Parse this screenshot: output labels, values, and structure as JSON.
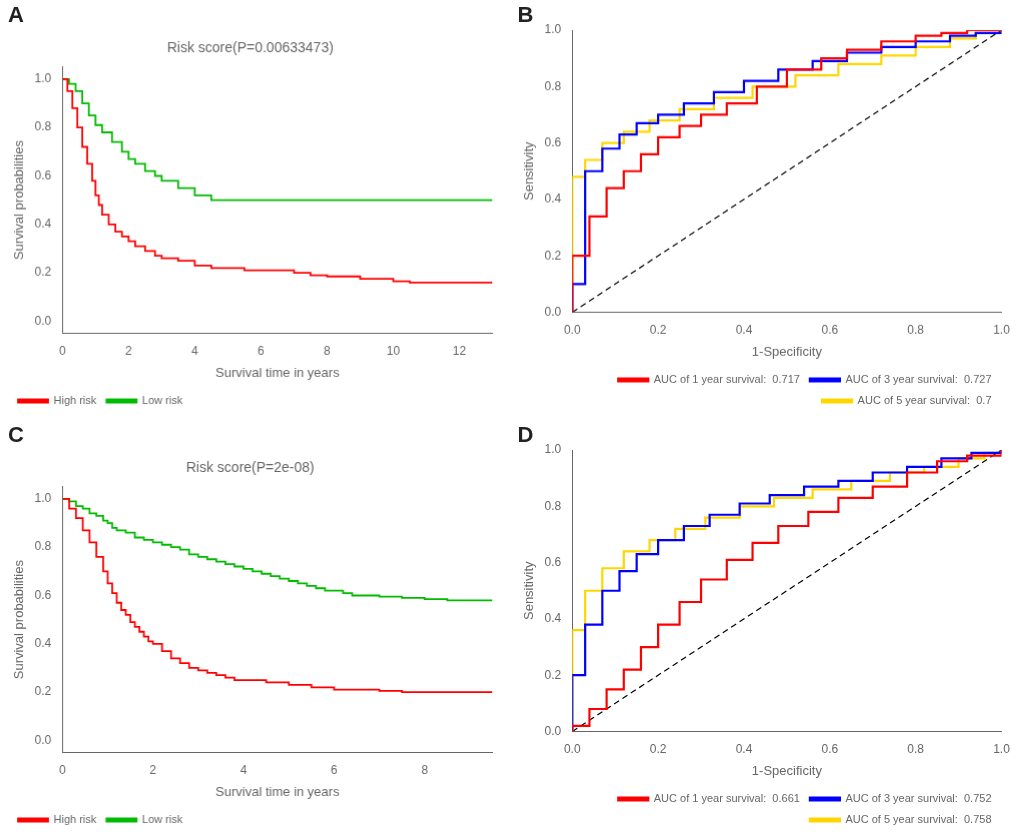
{
  "chart_data": [
    {
      "type": "step",
      "title": "Risk score(P=0.00633473)",
      "annotations": [
        "A"
      ],
      "xlabel": "Survival time in years",
      "ylabel": "Survival probabilities",
      "xlim": [
        0,
        13
      ],
      "ylim": [
        -0.05,
        1.05
      ],
      "xticks": [
        0,
        2,
        4,
        6,
        8,
        10,
        12
      ],
      "yticks": [
        {
          "value": 0.0,
          "label": "0.0"
        },
        0.2,
        0.4,
        0.6,
        0.8,
        {
          "value": 1.0,
          "label": "1.0"
        }
      ],
      "grid": false,
      "legend": "lower left",
      "series": [
        {
          "name": "High risk",
          "color": "#FF0000",
          "x": [
            0,
            0.15,
            0.3,
            0.45,
            0.6,
            0.75,
            0.9,
            1.0,
            1.1,
            1.2,
            1.4,
            1.6,
            1.8,
            2.0,
            2.2,
            2.5,
            2.8,
            3.0,
            3.5,
            4.0,
            4.5,
            5.0,
            5.5,
            6.0,
            7.0,
            7.5,
            8.0,
            9.0,
            10.0,
            10.5,
            12.5,
            13.0
          ],
          "values": [
            1.0,
            0.95,
            0.88,
            0.8,
            0.72,
            0.65,
            0.58,
            0.52,
            0.48,
            0.44,
            0.4,
            0.37,
            0.35,
            0.33,
            0.31,
            0.29,
            0.27,
            0.26,
            0.25,
            0.23,
            0.22,
            0.22,
            0.21,
            0.21,
            0.2,
            0.19,
            0.185,
            0.175,
            0.165,
            0.16,
            0.16,
            0.16
          ]
        },
        {
          "name": "Low risk",
          "color": "#00BB00",
          "x": [
            0,
            0.2,
            0.4,
            0.6,
            0.8,
            1.0,
            1.2,
            1.5,
            1.8,
            2.0,
            2.2,
            2.5,
            2.8,
            3.0,
            3.5,
            4.0,
            4.5,
            5.0,
            6.0,
            7.0,
            8.0,
            9.0,
            10.0,
            11.0,
            12.0,
            13.0
          ],
          "values": [
            1.0,
            0.98,
            0.95,
            0.9,
            0.85,
            0.81,
            0.78,
            0.74,
            0.7,
            0.67,
            0.65,
            0.62,
            0.6,
            0.58,
            0.55,
            0.52,
            0.5,
            0.5,
            0.5,
            0.5,
            0.5,
            0.5,
            0.5,
            0.5,
            0.5,
            0.5
          ]
        }
      ]
    },
    {
      "type": "line",
      "annotations": [
        "B"
      ],
      "xlabel": "1-Specificity",
      "ylabel": "Sensitivity",
      "xlim": [
        0.0,
        1.0
      ],
      "ylim": [
        0.0,
        1.0
      ],
      "xticks": [
        {
          "value": 0.0,
          "label": "0.0"
        },
        0.2,
        0.4,
        0.6,
        0.8,
        {
          "value": 1.0,
          "label": "1.0"
        }
      ],
      "yticks": [
        {
          "value": 0.0,
          "label": "0.0"
        },
        0.2,
        0.4,
        0.6,
        0.8,
        {
          "value": 1.0,
          "label": "1.0"
        }
      ],
      "grid": false,
      "legend": "lower right",
      "series": [
        {
          "name": "AUC of 1 year survival:  0.717",
          "color": "#FF0000",
          "x": [
            0.0,
            0.0,
            0.04,
            0.04,
            0.08,
            0.08,
            0.12,
            0.12,
            0.16,
            0.16,
            0.2,
            0.2,
            0.25,
            0.25,
            0.3,
            0.3,
            0.36,
            0.36,
            0.43,
            0.43,
            0.5,
            0.5,
            0.58,
            0.58,
            0.64,
            0.64,
            0.72,
            0.72,
            0.8,
            0.8,
            0.86,
            0.86,
            0.92,
            0.92,
            1.0,
            1.0
          ],
          "values": [
            0.0,
            0.2,
            0.2,
            0.34,
            0.34,
            0.44,
            0.44,
            0.5,
            0.5,
            0.56,
            0.56,
            0.62,
            0.62,
            0.66,
            0.66,
            0.7,
            0.7,
            0.74,
            0.74,
            0.8,
            0.8,
            0.86,
            0.86,
            0.9,
            0.9,
            0.93,
            0.93,
            0.96,
            0.96,
            0.98,
            0.98,
            0.99,
            0.99,
            1.0,
            1.0,
            1.0
          ]
        },
        {
          "name": "AUC of 3 year survival:  0.727",
          "color": "#0000FF",
          "x": [
            0.0,
            0.0,
            0.03,
            0.03,
            0.07,
            0.07,
            0.11,
            0.11,
            0.15,
            0.15,
            0.2,
            0.2,
            0.26,
            0.26,
            0.33,
            0.33,
            0.4,
            0.4,
            0.48,
            0.48,
            0.56,
            0.56,
            0.64,
            0.64,
            0.72,
            0.72,
            0.8,
            0.8,
            0.88,
            0.88,
            0.94,
            0.94,
            1.0,
            1.0
          ],
          "values": [
            0.0,
            0.1,
            0.1,
            0.5,
            0.5,
            0.58,
            0.58,
            0.63,
            0.63,
            0.67,
            0.67,
            0.7,
            0.7,
            0.74,
            0.74,
            0.78,
            0.78,
            0.82,
            0.82,
            0.86,
            0.86,
            0.89,
            0.89,
            0.92,
            0.92,
            0.94,
            0.94,
            0.96,
            0.96,
            0.98,
            0.98,
            0.99,
            0.99,
            1.0
          ]
        },
        {
          "name": "AUC of 5 year survival:  0.7",
          "color": "#FFD700",
          "x": [
            0.0,
            0.0,
            0.03,
            0.03,
            0.07,
            0.07,
            0.12,
            0.12,
            0.18,
            0.18,
            0.25,
            0.25,
            0.33,
            0.33,
            0.42,
            0.42,
            0.52,
            0.52,
            0.62,
            0.62,
            0.72,
            0.72,
            0.8,
            0.8,
            0.88,
            0.88,
            0.94,
            0.94,
            1.0,
            1.0
          ],
          "values": [
            0.0,
            0.48,
            0.48,
            0.54,
            0.54,
            0.6,
            0.6,
            0.64,
            0.64,
            0.68,
            0.68,
            0.72,
            0.72,
            0.76,
            0.76,
            0.8,
            0.8,
            0.84,
            0.84,
            0.88,
            0.88,
            0.91,
            0.91,
            0.94,
            0.94,
            0.97,
            0.97,
            0.99,
            0.99,
            1.0
          ]
        },
        {
          "color": "#000000",
          "line_style": "dashed",
          "x": [
            0,
            1
          ],
          "values": [
            0,
            1
          ]
        }
      ]
    },
    {
      "type": "step",
      "title": "Risk score(P=2e-08)",
      "annotations": [
        "C"
      ],
      "xlabel": "Survival time in years",
      "ylabel": "Survival probabilities",
      "xlim": [
        0,
        9.5
      ],
      "ylim": [
        -0.05,
        1.05
      ],
      "xticks": [
        0,
        2,
        4,
        6,
        8
      ],
      "yticks": [
        {
          "value": 0.0,
          "label": "0.0"
        },
        0.2,
        0.4,
        0.6,
        0.8,
        {
          "value": 1.0,
          "label": "1.0"
        }
      ],
      "grid": false,
      "legend": "lower left",
      "series": [
        {
          "name": "High risk",
          "color": "#FF0000",
          "x": [
            0,
            0.15,
            0.3,
            0.45,
            0.6,
            0.75,
            0.9,
            1.0,
            1.1,
            1.2,
            1.3,
            1.4,
            1.5,
            1.6,
            1.7,
            1.8,
            1.9,
            2.0,
            2.2,
            2.4,
            2.6,
            2.8,
            3.0,
            3.2,
            3.4,
            3.6,
            3.8,
            4.0,
            4.5,
            5.0,
            5.5,
            6.0,
            6.5,
            7.0,
            7.5,
            8.0,
            8.5,
            9.0,
            9.5
          ],
          "values": [
            1.0,
            0.96,
            0.92,
            0.87,
            0.82,
            0.76,
            0.7,
            0.65,
            0.61,
            0.57,
            0.54,
            0.52,
            0.49,
            0.47,
            0.45,
            0.43,
            0.41,
            0.4,
            0.37,
            0.34,
            0.32,
            0.3,
            0.29,
            0.28,
            0.27,
            0.26,
            0.25,
            0.25,
            0.24,
            0.23,
            0.22,
            0.21,
            0.21,
            0.205,
            0.2,
            0.2,
            0.2,
            0.2,
            0.2
          ]
        },
        {
          "name": "Low risk",
          "color": "#00BB00",
          "x": [
            0,
            0.15,
            0.3,
            0.45,
            0.6,
            0.75,
            0.9,
            1.0,
            1.1,
            1.2,
            1.4,
            1.6,
            1.8,
            2.0,
            2.2,
            2.4,
            2.6,
            2.8,
            3.0,
            3.2,
            3.4,
            3.6,
            3.8,
            4.0,
            4.2,
            4.4,
            4.6,
            4.8,
            5.0,
            5.2,
            5.4,
            5.6,
            5.8,
            6.0,
            6.2,
            6.4,
            7.0,
            7.5,
            8.0,
            8.5,
            9.0,
            9.5
          ],
          "values": [
            1.0,
            0.99,
            0.97,
            0.96,
            0.94,
            0.93,
            0.91,
            0.9,
            0.88,
            0.87,
            0.86,
            0.84,
            0.83,
            0.82,
            0.81,
            0.8,
            0.79,
            0.77,
            0.76,
            0.75,
            0.74,
            0.73,
            0.72,
            0.71,
            0.7,
            0.69,
            0.68,
            0.67,
            0.66,
            0.65,
            0.64,
            0.63,
            0.62,
            0.62,
            0.61,
            0.6,
            0.595,
            0.59,
            0.585,
            0.58,
            0.58,
            0.58
          ]
        }
      ]
    },
    {
      "type": "line",
      "annotations": [
        "D"
      ],
      "xlabel": "1-Specificity",
      "ylabel": "Sensitivity",
      "xlim": [
        0.0,
        1.0
      ],
      "ylim": [
        0.0,
        1.0
      ],
      "xticks": [
        {
          "value": 0.0,
          "label": "0.0"
        },
        0.2,
        0.4,
        0.6,
        0.8,
        {
          "value": 1.0,
          "label": "1.0"
        }
      ],
      "yticks": [
        {
          "value": 0.0,
          "label": "0.0"
        },
        0.2,
        0.4,
        0.6,
        0.8,
        {
          "value": 1.0,
          "label": "1.0"
        }
      ],
      "grid": false,
      "legend": "lower right",
      "series": [
        {
          "name": "AUC of 1 year survival:  0.661",
          "color": "#FF0000",
          "x": [
            0.0,
            0.0,
            0.04,
            0.04,
            0.08,
            0.08,
            0.12,
            0.12,
            0.16,
            0.16,
            0.2,
            0.2,
            0.25,
            0.25,
            0.3,
            0.3,
            0.36,
            0.36,
            0.42,
            0.42,
            0.48,
            0.48,
            0.55,
            0.55,
            0.62,
            0.62,
            0.7,
            0.7,
            0.78,
            0.78,
            0.85,
            0.85,
            0.92,
            0.92,
            1.0,
            1.0
          ],
          "values": [
            0.0,
            0.02,
            0.02,
            0.08,
            0.08,
            0.15,
            0.15,
            0.22,
            0.22,
            0.3,
            0.3,
            0.38,
            0.38,
            0.46,
            0.46,
            0.54,
            0.54,
            0.61,
            0.61,
            0.67,
            0.67,
            0.73,
            0.73,
            0.78,
            0.78,
            0.83,
            0.83,
            0.87,
            0.87,
            0.92,
            0.92,
            0.96,
            0.96,
            0.98,
            0.98,
            1.0
          ]
        },
        {
          "name": "AUC of 3 year survival:  0.752",
          "color": "#0000FF",
          "x": [
            0.0,
            0.0,
            0.03,
            0.03,
            0.07,
            0.07,
            0.11,
            0.11,
            0.15,
            0.15,
            0.2,
            0.2,
            0.26,
            0.26,
            0.32,
            0.32,
            0.39,
            0.39,
            0.46,
            0.46,
            0.54,
            0.54,
            0.62,
            0.62,
            0.7,
            0.7,
            0.78,
            0.78,
            0.86,
            0.86,
            0.93,
            0.93,
            1.0,
            1.0
          ],
          "values": [
            0.0,
            0.2,
            0.2,
            0.38,
            0.38,
            0.5,
            0.5,
            0.57,
            0.57,
            0.63,
            0.63,
            0.68,
            0.68,
            0.73,
            0.73,
            0.77,
            0.77,
            0.81,
            0.81,
            0.84,
            0.84,
            0.87,
            0.87,
            0.89,
            0.89,
            0.92,
            0.92,
            0.94,
            0.94,
            0.97,
            0.97,
            0.99,
            0.99,
            1.0
          ]
        },
        {
          "name": "AUC of 5 year survival:  0.758",
          "color": "#FFD700",
          "x": [
            0.0,
            0.0,
            0.03,
            0.03,
            0.07,
            0.07,
            0.12,
            0.12,
            0.18,
            0.18,
            0.24,
            0.24,
            0.31,
            0.31,
            0.39,
            0.39,
            0.47,
            0.47,
            0.56,
            0.56,
            0.65,
            0.65,
            0.74,
            0.74,
            0.82,
            0.82,
            0.9,
            0.9,
            0.96,
            0.96,
            1.0,
            1.0
          ],
          "values": [
            0.0,
            0.36,
            0.36,
            0.5,
            0.5,
            0.58,
            0.58,
            0.64,
            0.64,
            0.68,
            0.68,
            0.72,
            0.72,
            0.76,
            0.76,
            0.8,
            0.8,
            0.83,
            0.83,
            0.86,
            0.86,
            0.89,
            0.89,
            0.92,
            0.92,
            0.94,
            0.94,
            0.97,
            0.97,
            0.99,
            0.99,
            1.0
          ]
        },
        {
          "color": "#000000",
          "line_style": "dashed",
          "x": [
            0,
            1
          ],
          "values": [
            0,
            1
          ]
        }
      ]
    }
  ]
}
